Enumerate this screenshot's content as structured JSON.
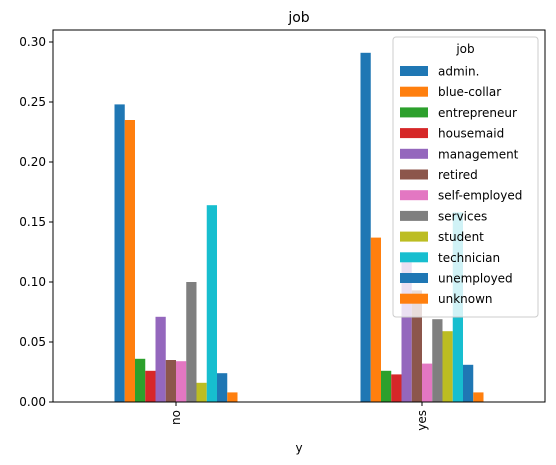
{
  "chart_data": {
    "type": "bar",
    "title": "job",
    "xlabel": "y",
    "ylabel": "",
    "categories": [
      "no",
      "yes"
    ],
    "ylim": [
      0,
      0.31
    ],
    "yticks": [
      0.0,
      0.05,
      0.1,
      0.15,
      0.2,
      0.25,
      0.3
    ],
    "ytick_labels": [
      "0.00",
      "0.05",
      "0.10",
      "0.15",
      "0.20",
      "0.25",
      "0.30"
    ],
    "legend": {
      "title": "job",
      "placement": "top-right"
    },
    "grid": false,
    "series": [
      {
        "name": "admin.",
        "color": "#1f77b4",
        "values": [
          0.248,
          0.291
        ]
      },
      {
        "name": "blue-collar",
        "color": "#ff7f0e",
        "values": [
          0.235,
          0.137
        ]
      },
      {
        "name": "entrepreneur",
        "color": "#2ca02c",
        "values": [
          0.036,
          0.026
        ]
      },
      {
        "name": "housemaid",
        "color": "#d62728",
        "values": [
          0.026,
          0.023
        ]
      },
      {
        "name": "management",
        "color": "#9467bd",
        "values": [
          0.071,
          0.118
        ]
      },
      {
        "name": "retired",
        "color": "#8c564b",
        "values": [
          0.035,
          0.093
        ]
      },
      {
        "name": "self-employed",
        "color": "#e377c2",
        "values": [
          0.034,
          0.032
        ]
      },
      {
        "name": "services",
        "color": "#7f7f7f",
        "values": [
          0.1,
          0.069
        ]
      },
      {
        "name": "student",
        "color": "#bcbd22",
        "values": [
          0.016,
          0.059
        ]
      },
      {
        "name": "technician",
        "color": "#17becf",
        "values": [
          0.164,
          0.158
        ]
      },
      {
        "name": "unemployed",
        "color": "#1f77b4",
        "values": [
          0.024,
          0.031
        ]
      },
      {
        "name": "unknown",
        "color": "#ff7f0e",
        "values": [
          0.008,
          0.008
        ]
      }
    ]
  }
}
